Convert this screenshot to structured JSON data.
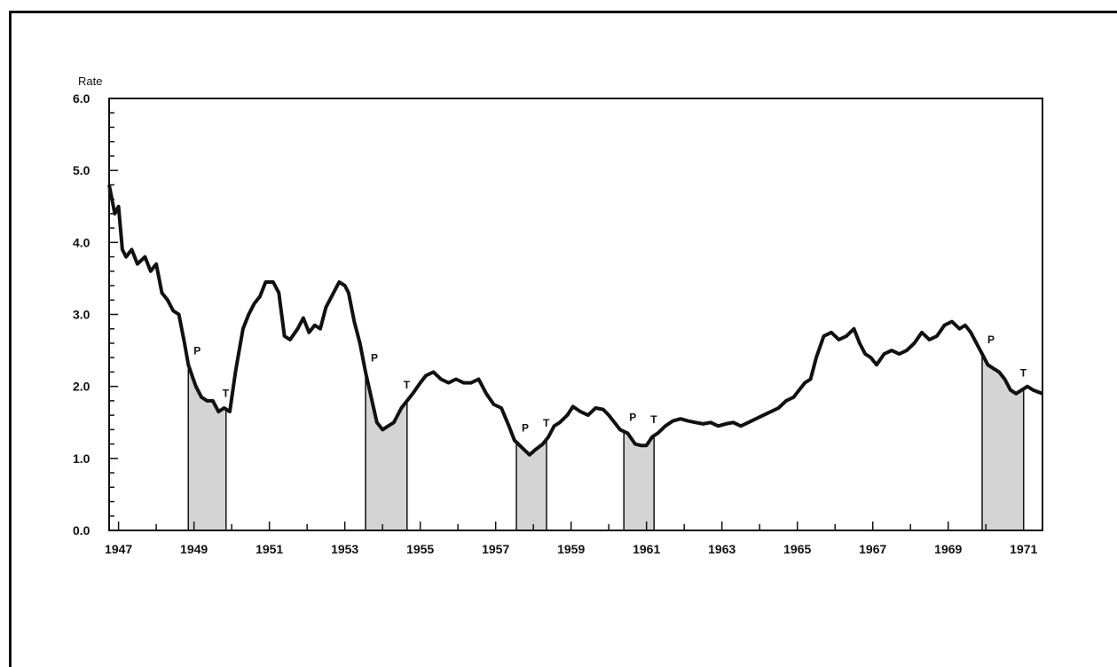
{
  "chart_data": {
    "type": "line",
    "ylabel": "Rate",
    "ylim": [
      0,
      6
    ],
    "xlim": [
      1946.75,
      1971.5
    ],
    "grid": false,
    "y_ticks": [
      {
        "value": 0,
        "label": "0.0"
      },
      {
        "value": 1,
        "label": "1.0"
      },
      {
        "value": 2,
        "label": "2.0"
      },
      {
        "value": 3,
        "label": "3.0"
      },
      {
        "value": 4,
        "label": "4.0"
      },
      {
        "value": 5,
        "label": "5.0"
      },
      {
        "value": 6,
        "label": "6.0"
      }
    ],
    "x_ticks": [
      {
        "value": 1947,
        "label": "1947"
      },
      {
        "value": 1949,
        "label": "1949"
      },
      {
        "value": 1951,
        "label": "1951"
      },
      {
        "value": 1953,
        "label": "1953"
      },
      {
        "value": 1955,
        "label": "1955"
      },
      {
        "value": 1957,
        "label": "1957"
      },
      {
        "value": 1959,
        "label": "1959"
      },
      {
        "value": 1961,
        "label": "1961"
      },
      {
        "value": 1963,
        "label": "1963"
      },
      {
        "value": 1965,
        "label": "1965"
      },
      {
        "value": 1967,
        "label": "1967"
      },
      {
        "value": 1969,
        "label": "1969"
      },
      {
        "value": 1971,
        "label": "1971"
      }
    ],
    "series": [
      {
        "x": [
          1946.75,
          1946.9,
          1947.0,
          1947.1,
          1947.2,
          1947.35,
          1947.5,
          1947.7,
          1947.85,
          1948.0,
          1948.15,
          1948.3,
          1948.45,
          1948.6,
          1948.75,
          1948.85,
          1948.95,
          1949.05,
          1949.2,
          1949.35,
          1949.5,
          1949.65,
          1949.8,
          1949.95,
          1950.1,
          1950.2,
          1950.3,
          1950.45,
          1950.6,
          1950.75,
          1950.9,
          1951.1,
          1951.25,
          1951.4,
          1951.55,
          1951.75,
          1951.9,
          1952.05,
          1952.2,
          1952.35,
          1952.5,
          1952.7,
          1952.85,
          1953.0,
          1953.1,
          1953.25,
          1953.4,
          1953.55,
          1953.7,
          1953.85,
          1954.0,
          1954.15,
          1954.3,
          1954.5,
          1954.65,
          1954.8,
          1955.0,
          1955.15,
          1955.35,
          1955.55,
          1955.75,
          1955.95,
          1956.15,
          1956.35,
          1956.55,
          1956.75,
          1956.95,
          1957.15,
          1957.35,
          1957.5,
          1957.7,
          1957.9,
          1958.05,
          1958.25,
          1958.4,
          1958.55,
          1958.7,
          1958.9,
          1959.05,
          1959.25,
          1959.45,
          1959.65,
          1959.85,
          1960.0,
          1960.15,
          1960.3,
          1960.5,
          1960.7,
          1960.85,
          1961.0,
          1961.15,
          1961.3,
          1961.5,
          1961.7,
          1961.9,
          1962.1,
          1962.3,
          1962.5,
          1962.7,
          1962.9,
          1963.1,
          1963.3,
          1963.5,
          1963.7,
          1963.9,
          1964.1,
          1964.3,
          1964.5,
          1964.7,
          1964.9,
          1965.05,
          1965.2,
          1965.35,
          1965.5,
          1965.7,
          1965.9,
          1966.1,
          1966.3,
          1966.5,
          1966.65,
          1966.8,
          1966.95,
          1967.1,
          1967.3,
          1967.5,
          1967.7,
          1967.9,
          1968.1,
          1968.3,
          1968.5,
          1968.7,
          1968.9,
          1969.1,
          1969.3,
          1969.45,
          1969.6,
          1969.75,
          1969.9,
          1970.05,
          1970.2,
          1970.35,
          1970.5,
          1970.65,
          1970.8,
          1970.95,
          1971.1,
          1971.25,
          1971.5
        ],
        "y": [
          4.8,
          4.4,
          4.5,
          3.9,
          3.8,
          3.9,
          3.7,
          3.8,
          3.6,
          3.7,
          3.3,
          3.2,
          3.05,
          3.0,
          2.6,
          2.3,
          2.15,
          2.0,
          1.85,
          1.8,
          1.8,
          1.65,
          1.7,
          1.65,
          2.2,
          2.5,
          2.8,
          3.0,
          3.15,
          3.25,
          3.45,
          3.45,
          3.3,
          2.7,
          2.65,
          2.8,
          2.95,
          2.75,
          2.85,
          2.8,
          3.1,
          3.3,
          3.45,
          3.4,
          3.3,
          2.9,
          2.6,
          2.2,
          1.85,
          1.5,
          1.4,
          1.45,
          1.5,
          1.7,
          1.8,
          1.9,
          2.05,
          2.15,
          2.2,
          2.1,
          2.05,
          2.1,
          2.05,
          2.05,
          2.1,
          1.9,
          1.75,
          1.7,
          1.45,
          1.25,
          1.15,
          1.05,
          1.12,
          1.2,
          1.3,
          1.45,
          1.5,
          1.6,
          1.72,
          1.65,
          1.6,
          1.7,
          1.68,
          1.6,
          1.5,
          1.4,
          1.35,
          1.2,
          1.18,
          1.18,
          1.3,
          1.35,
          1.45,
          1.52,
          1.55,
          1.52,
          1.5,
          1.48,
          1.5,
          1.45,
          1.48,
          1.5,
          1.45,
          1.5,
          1.55,
          1.6,
          1.65,
          1.7,
          1.8,
          1.85,
          1.95,
          2.05,
          2.1,
          2.4,
          2.7,
          2.75,
          2.65,
          2.7,
          2.8,
          2.6,
          2.45,
          2.4,
          2.3,
          2.45,
          2.5,
          2.45,
          2.5,
          2.6,
          2.75,
          2.65,
          2.7,
          2.85,
          2.9,
          2.8,
          2.85,
          2.75,
          2.6,
          2.45,
          2.3,
          2.25,
          2.2,
          2.1,
          1.95,
          1.9,
          1.95,
          2.0,
          1.95,
          1.9
        ]
      }
    ],
    "cycles": [
      {
        "peak": 1948.85,
        "trough": 1949.85,
        "peak_label": "P",
        "trough_label": "T"
      },
      {
        "peak": 1953.55,
        "trough": 1954.65,
        "peak_label": "P",
        "trough_label": "T"
      },
      {
        "peak": 1957.55,
        "trough": 1958.35,
        "peak_label": "P",
        "trough_label": "T"
      },
      {
        "peak": 1960.4,
        "trough": 1961.2,
        "peak_label": "P",
        "trough_label": "T"
      },
      {
        "peak": 1969.9,
        "trough": 1971.0,
        "peak_label": "P",
        "trough_label": "T"
      }
    ]
  }
}
